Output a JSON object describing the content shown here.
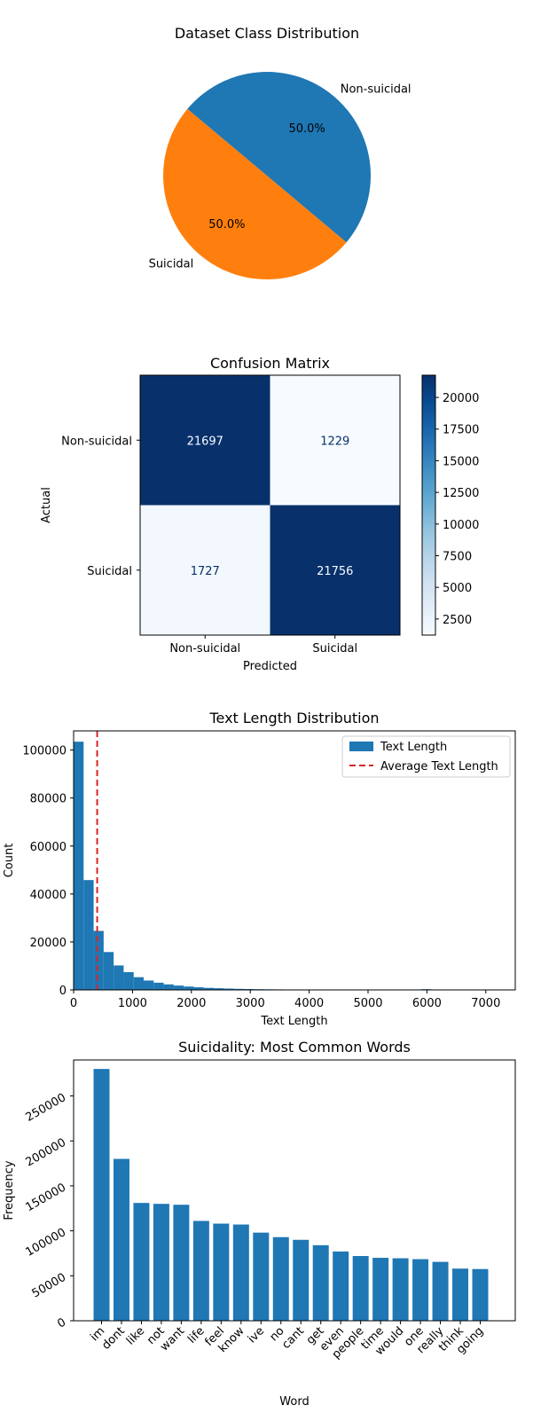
{
  "chart_data": [
    {
      "type": "pie",
      "title": "Dataset Class Distribution",
      "slices": [
        {
          "label": "Suicidal",
          "value": 50.0,
          "pct_label": "50.0%",
          "color": "#ff7f0e"
        },
        {
          "label": "Non-suicidal",
          "value": 50.0,
          "pct_label": "50.0%",
          "color": "#1f77b4"
        }
      ],
      "start_angle_deg": 140
    },
    {
      "type": "heatmap",
      "title": "Confusion Matrix",
      "xlabel": "Predicted",
      "ylabel": "Actual",
      "x_categories": [
        "Non-suicidal",
        "Suicidal"
      ],
      "y_categories": [
        "Non-suicidal",
        "Suicidal"
      ],
      "matrix": [
        [
          21697,
          1229
        ],
        [
          1727,
          21756
        ]
      ],
      "colormap": "Blues",
      "colorbar_ticks": [
        2500,
        5000,
        7500,
        10000,
        12500,
        15000,
        17500,
        20000
      ],
      "colorbar_range": [
        1229,
        21756
      ]
    },
    {
      "type": "bar",
      "subtype": "histogram",
      "title": "Text Length Distribution",
      "xlabel": "Text Length",
      "ylabel": "Count",
      "xlim": [
        0,
        7500
      ],
      "ylim": [
        0,
        108000
      ],
      "x_ticks": [
        0,
        1000,
        2000,
        3000,
        4000,
        5000,
        6000,
        7000
      ],
      "y_ticks": [
        0,
        20000,
        40000,
        60000,
        80000,
        100000
      ],
      "bin_width": 170,
      "counts": [
        103500,
        45800,
        24600,
        15800,
        10200,
        7400,
        5300,
        3900,
        3000,
        2300,
        1800,
        1400,
        1100,
        850,
        700,
        560,
        450,
        370,
        300,
        250,
        210,
        180,
        150,
        130,
        110,
        100,
        90,
        80,
        70,
        60,
        50,
        40,
        30,
        25,
        20,
        15,
        10,
        8,
        6,
        5,
        4,
        3,
        2
      ],
      "mean_line": 400,
      "color": "#1f77b4",
      "mean_color": "#d62728",
      "legend": {
        "position": "top-right",
        "entries": [
          "Text Length",
          "Average Text Length"
        ]
      }
    },
    {
      "type": "bar",
      "title": "Suicidality: Most Common Words",
      "xlabel": "Word",
      "ylabel": "Frequency",
      "ylim": [
        0,
        290000
      ],
      "y_ticks": [
        0,
        50000,
        100000,
        150000,
        200000,
        250000
      ],
      "categories": [
        "im",
        "dont",
        "like",
        "not",
        "want",
        "life",
        "feel",
        "know",
        "ive",
        "no",
        "cant",
        "get",
        "even",
        "people",
        "time",
        "would",
        "one",
        "really",
        "think",
        "going"
      ],
      "values": [
        280000,
        180000,
        131000,
        130000,
        129000,
        111000,
        108000,
        107000,
        98000,
        93000,
        90000,
        84000,
        77000,
        72000,
        70000,
        69500,
        68500,
        65500,
        58000,
        57500
      ],
      "color": "#1f77b4"
    }
  ]
}
